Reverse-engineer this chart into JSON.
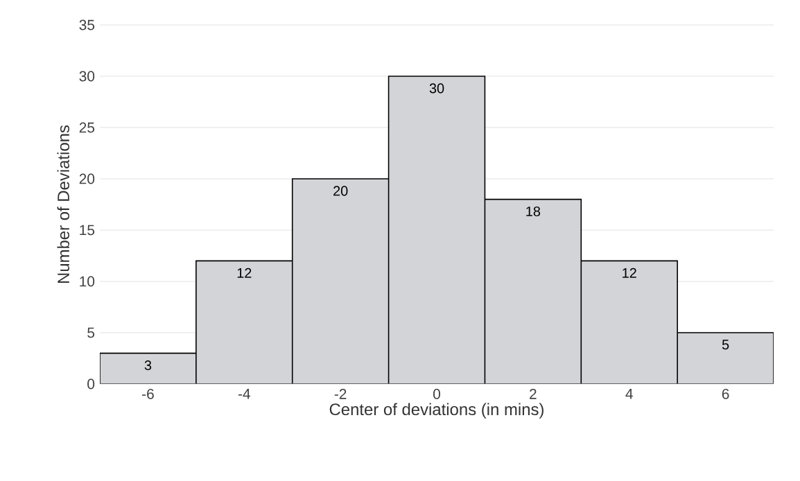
{
  "chart_data": {
    "type": "bar",
    "xlabel": "Center of deviations (in mins)",
    "ylabel": "Number of Deviations",
    "categories": [
      "-6",
      "-4",
      "-2",
      "0",
      "2",
      "4",
      "6"
    ],
    "values": [
      3,
      12,
      20,
      30,
      18,
      12,
      5
    ],
    "color": "#d3d4d8",
    "ylim": [
      0,
      35
    ],
    "yticks": [
      0,
      5,
      10,
      15,
      20,
      25,
      30,
      35
    ],
    "grid": "y",
    "data_labels": true
  }
}
